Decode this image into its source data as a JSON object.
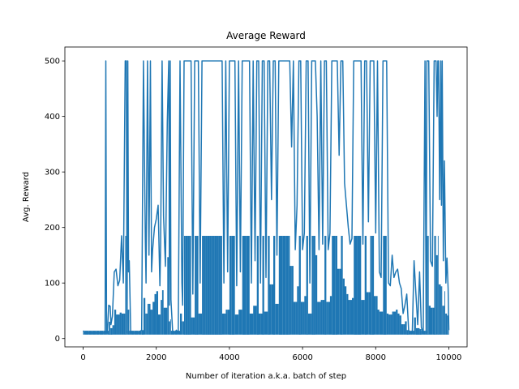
{
  "chart_data": {
    "type": "line",
    "title": "Average Reward",
    "xlabel": "Number of iteration a.k.a. batch of step",
    "ylabel": "Avg. Reward",
    "xlim": [
      -500,
      10500
    ],
    "ylim": [
      -15,
      525
    ],
    "xticks": [
      0,
      2000,
      4000,
      6000,
      8000,
      10000
    ],
    "yticks": [
      0,
      100,
      200,
      300,
      400,
      500
    ],
    "grid": false,
    "legend": "none",
    "series": [
      {
        "color": "#1f77b4",
        "x": [
          0,
          50,
          150,
          250,
          350,
          450,
          550,
          600,
          620,
          640,
          660,
          700,
          740,
          760,
          800,
          850,
          900,
          950,
          1000,
          1050,
          1100,
          1150,
          1180,
          1200,
          1220,
          1240,
          1260,
          1300,
          1350,
          1400,
          1500,
          1600,
          1650,
          1700,
          1720,
          1760,
          1800,
          1840,
          1870,
          1900,
          1950,
          2000,
          2050,
          2100,
          2120,
          2160,
          2200,
          2250,
          2300,
          2340,
          2360,
          2380,
          2400,
          2450,
          2500,
          2550,
          2600,
          2650,
          2700,
          2720,
          2760,
          2800,
          2850,
          2900,
          2950,
          3000,
          3050,
          3100,
          3150,
          3200,
          3250,
          3300,
          3350,
          3400,
          3450,
          3500,
          3550,
          3600,
          3650,
          3700,
          3750,
          3800,
          3850,
          3900,
          3950,
          4000,
          4050,
          4100,
          4150,
          4200,
          4250,
          4300,
          4350,
          4400,
          4450,
          4500,
          4550,
          4600,
          4650,
          4700,
          4750,
          4800,
          4850,
          4900,
          4950,
          5000,
          5050,
          5100,
          5150,
          5200,
          5250,
          5300,
          5350,
          5400,
          5450,
          5500,
          5550,
          5600,
          5650,
          5700,
          5750,
          5800,
          5850,
          5900,
          5950,
          6000,
          6050,
          6100,
          6150,
          6200,
          6250,
          6300,
          6350,
          6400,
          6450,
          6500,
          6550,
          6600,
          6650,
          6700,
          6750,
          6800,
          6850,
          6900,
          6950,
          7000,
          7050,
          7100,
          7150,
          7200,
          7250,
          7300,
          7350,
          7400,
          7450,
          7500,
          7550,
          7600,
          7650,
          7700,
          7750,
          7800,
          7850,
          7900,
          7950,
          8000,
          8050,
          8100,
          8150,
          8200,
          8250,
          8300,
          8350,
          8400,
          8450,
          8500,
          8550,
          8600,
          8650,
          8700,
          8750,
          8800,
          8850,
          8900,
          8950,
          9000,
          9050,
          9100,
          9150,
          9200,
          9250,
          9300,
          9350,
          9380,
          9400,
          9420,
          9450,
          9500,
          9550,
          9600,
          9620,
          9650,
          9680,
          9700,
          9720,
          9750,
          9780,
          9800,
          9820,
          9850,
          9880,
          9900,
          9920,
          9950,
          9980,
          10000
        ],
        "y": [
          14,
          10,
          10,
          10,
          10,
          10,
          10,
          10,
          500,
          10,
          10,
          60,
          58,
          25,
          40,
          120,
          125,
          95,
          105,
          185,
          100,
          500,
          500,
          10,
          500,
          120,
          140,
          10,
          10,
          10,
          10,
          15,
          500,
          180,
          100,
          500,
          150,
          500,
          120,
          160,
          200,
          215,
          240,
          95,
          170,
          500,
          220,
          130,
          390,
          500,
          60,
          500,
          70,
          10,
          10,
          15,
          10,
          500,
          100,
          60,
          500,
          500,
          500,
          500,
          500,
          80,
          500,
          500,
          500,
          100,
          500,
          500,
          500,
          500,
          500,
          500,
          500,
          500,
          500,
          500,
          500,
          500,
          100,
          500,
          120,
          500,
          500,
          500,
          500,
          95,
          500,
          120,
          500,
          500,
          500,
          500,
          500,
          100,
          500,
          140,
          500,
          500,
          100,
          500,
          500,
          110,
          500,
          500,
          250,
          500,
          500,
          150,
          500,
          500,
          500,
          500,
          500,
          500,
          500,
          345,
          500,
          160,
          240,
          500,
          500,
          160,
          190,
          500,
          500,
          100,
          500,
          500,
          500,
          400,
          160,
          500,
          170,
          500,
          500,
          160,
          190,
          500,
          500,
          500,
          500,
          330,
          500,
          500,
          280,
          240,
          200,
          170,
          180,
          500,
          500,
          500,
          500,
          500,
          170,
          500,
          500,
          210,
          500,
          500,
          500,
          190,
          500,
          120,
          110,
          500,
          500,
          500,
          100,
          95,
          150,
          110,
          120,
          125,
          100,
          90,
          45,
          60,
          80,
          15,
          10,
          10,
          140,
          80,
          25,
          120,
          20,
          10,
          500,
          10,
          500,
          500,
          500,
          140,
          130,
          500,
          500,
          500,
          400,
          500,
          500,
          250,
          500,
          240,
          500,
          140,
          320,
          215,
          100,
          145,
          90,
          15
        ]
      }
    ]
  }
}
